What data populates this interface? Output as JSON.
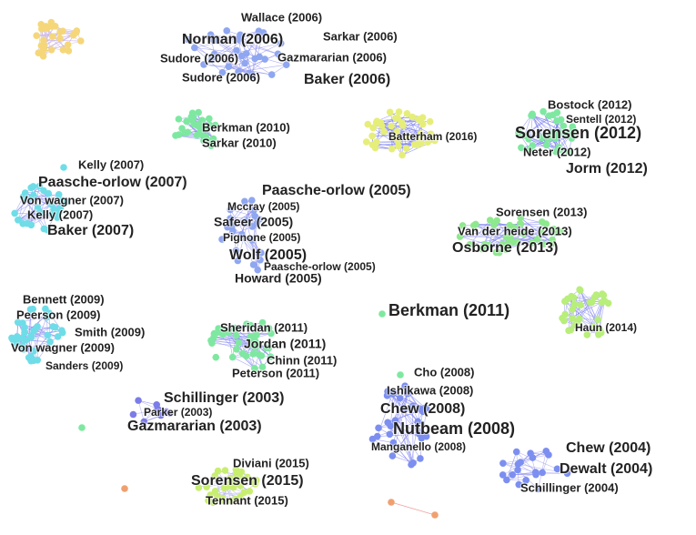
{
  "clusters": [
    {
      "labels": [
        "Wallace (2006)",
        "Norman (2006)",
        "Sarkar (2006)",
        "Sudore (2006)",
        "Gazmararian (2006)",
        "Sudore (2006)",
        "Baker (2006)"
      ]
    },
    {
      "labels": [
        "Berkman (2010)",
        "Sarkar (2010)"
      ]
    },
    {
      "labels": [
        "Batterham (2016)"
      ]
    },
    {
      "labels": [
        "Bostock (2012)",
        "Sentell (2012)",
        "Sorensen (2012)",
        "Neter (2012)",
        "Jorm (2012)"
      ]
    },
    {
      "labels": [
        "Kelly (2007)",
        "Paasche-orlow (2007)",
        "Von wagner (2007)",
        "Kelly (2007)",
        "Baker (2007)"
      ]
    },
    {
      "labels": [
        "Paasche-orlow (2005)",
        "Mccray (2005)",
        "Safeer (2005)",
        "Pignone (2005)",
        "Wolf (2005)",
        "Paasche-orlow (2005)",
        "Howard (2005)"
      ]
    },
    {
      "labels": [
        "Sorensen (2013)",
        "Van der heide (2013)",
        "Osborne (2013)"
      ]
    },
    {
      "labels": [
        "Berkman (2011)"
      ]
    },
    {
      "labels": [
        "Haun (2014)"
      ]
    },
    {
      "labels": [
        "Bennett (2009)",
        "Peerson (2009)",
        "Smith (2009)",
        "Von wagner (2009)",
        "Sanders (2009)"
      ]
    },
    {
      "labels": [
        "Sheridan (2011)",
        "Jordan (2011)",
        "Chinn (2011)",
        "Peterson (2011)"
      ]
    },
    {
      "labels": [
        "Schillinger (2003)",
        "Parker (2003)",
        "Gazmararian (2003)"
      ]
    },
    {
      "labels": [
        "Cho (2008)",
        "Ishikawa (2008)",
        "Chew (2008)",
        "Nutbeam (2008)",
        "Manganello (2008)"
      ]
    },
    {
      "labels": [
        "Chew (2004)",
        "Dewalt (2004)",
        "Schillinger (2004)"
      ]
    },
    {
      "labels": [
        "Diviani (2015)",
        "Sorensen (2015)",
        "Tennant (2015)"
      ]
    }
  ]
}
